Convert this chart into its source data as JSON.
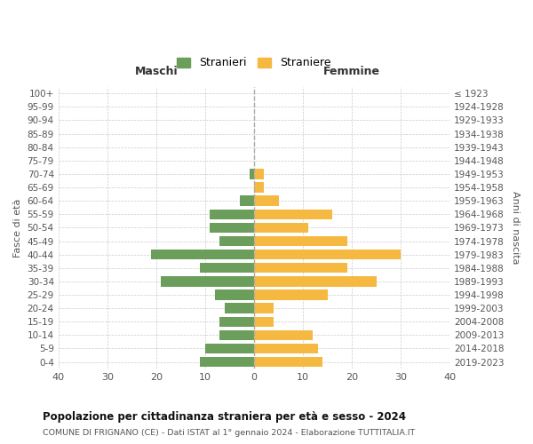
{
  "age_groups": [
    "0-4",
    "5-9",
    "10-14",
    "15-19",
    "20-24",
    "25-29",
    "30-34",
    "35-39",
    "40-44",
    "45-49",
    "50-54",
    "55-59",
    "60-64",
    "65-69",
    "70-74",
    "75-79",
    "80-84",
    "85-89",
    "90-94",
    "95-99",
    "100+"
  ],
  "birth_years": [
    "2019-2023",
    "2014-2018",
    "2009-2013",
    "2004-2008",
    "1999-2003",
    "1994-1998",
    "1989-1993",
    "1984-1988",
    "1979-1983",
    "1974-1978",
    "1969-1973",
    "1964-1968",
    "1959-1963",
    "1954-1958",
    "1949-1953",
    "1944-1948",
    "1939-1943",
    "1934-1938",
    "1929-1933",
    "1924-1928",
    "≤ 1923"
  ],
  "maschi": [
    11,
    10,
    7,
    7,
    6,
    8,
    19,
    11,
    21,
    7,
    9,
    9,
    3,
    0,
    1,
    0,
    0,
    0,
    0,
    0,
    0
  ],
  "femmine": [
    14,
    13,
    12,
    4,
    4,
    15,
    25,
    19,
    30,
    19,
    11,
    16,
    5,
    2,
    2,
    0,
    0,
    0,
    0,
    0,
    0
  ],
  "maschi_color": "#6a9e5a",
  "femmine_color": "#f5b942",
  "bg_color": "#ffffff",
  "grid_color": "#cccccc",
  "title": "Popolazione per cittadinanza straniera per età e sesso - 2024",
  "subtitle": "COMUNE DI FRIGNANO (CE) - Dati ISTAT al 1° gennaio 2024 - Elaborazione TUTTITALIA.IT",
  "xlabel_left": "Maschi",
  "xlabel_right": "Femmine",
  "ylabel_left": "Fasce di età",
  "ylabel_right": "Anni di nascita",
  "xlim": 40,
  "legend_stranieri": "Stranieri",
  "legend_straniere": "Straniere"
}
